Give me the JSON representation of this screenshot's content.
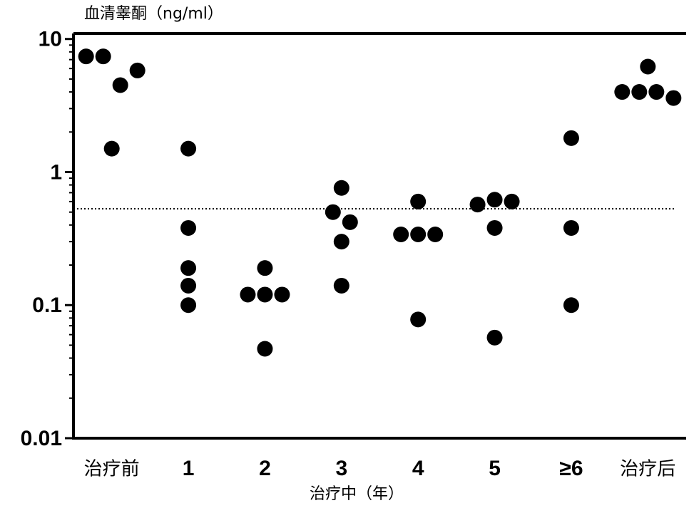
{
  "chart_data": {
    "type": "dot",
    "y_label": "血清睾酮（ng/ml）",
    "x_label": "治疗中（年）",
    "categories": [
      "治疗前",
      "1",
      "2",
      "3",
      "4",
      "5",
      "≥6",
      "治疗后"
    ],
    "values": [
      [
        7.4,
        7.4,
        4.5,
        5.8,
        1.5
      ],
      [
        1.5,
        0.38,
        0.19,
        0.14,
        0.1
      ],
      [
        0.12,
        0.12,
        0.12,
        0.19,
        0.047
      ],
      [
        0.76,
        0.5,
        0.42,
        0.3,
        0.14
      ],
      [
        0.6,
        0.34,
        0.34,
        0.34,
        0.078
      ],
      [
        0.57,
        0.62,
        0.6,
        0.38,
        0.057
      ],
      [
        1.8,
        0.38,
        0.1
      ],
      [
        6.2,
        4.0,
        4.0,
        4.0,
        3.6
      ]
    ],
    "color": "#000000",
    "reference_line": 0.53,
    "log_y": true,
    "ylim": [
      0.01,
      11
    ],
    "yticks": [
      0.01,
      0.1,
      1,
      10
    ]
  }
}
